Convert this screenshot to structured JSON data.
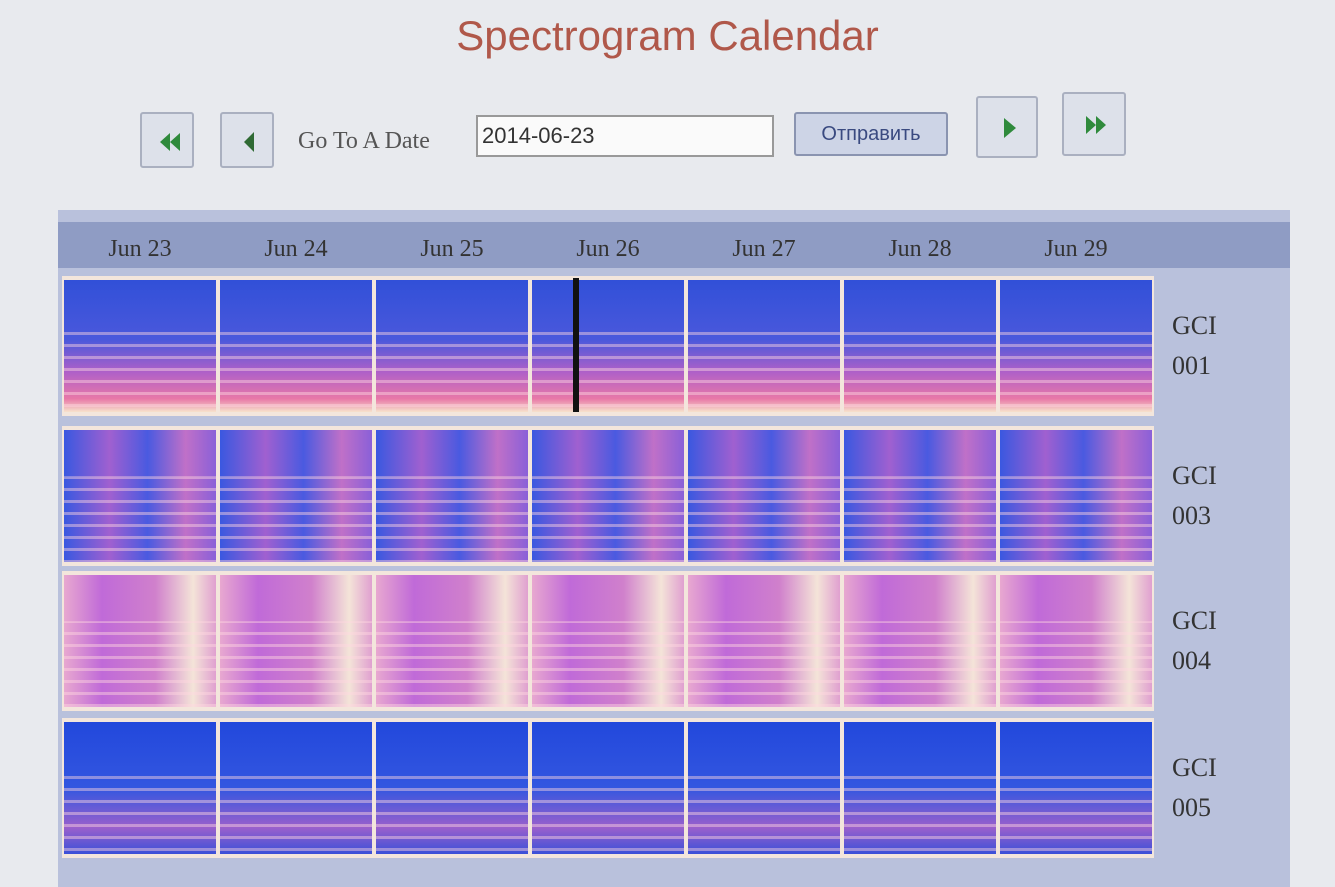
{
  "title": "Spectrogram Calendar",
  "nav": {
    "label": "Go To A Date",
    "date": "2014-06-23",
    "submit": "Отправить"
  },
  "days": [
    "Jun 23",
    "Jun 24",
    "Jun 25",
    "Jun 26",
    "Jun 27",
    "Jun 28",
    "Jun 29"
  ],
  "stations": [
    "GCI 001",
    "GCI 003",
    "GCI 004",
    "GCI 005"
  ]
}
